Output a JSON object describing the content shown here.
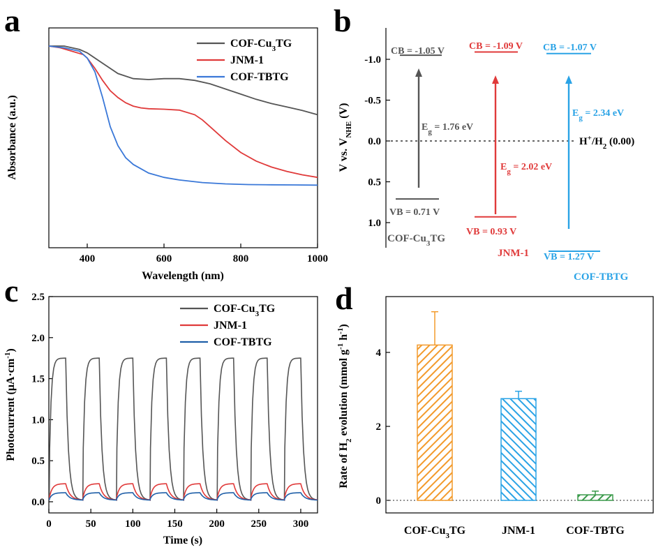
{
  "chart_data": [
    {
      "panel": "a",
      "type": "line",
      "xlabel": "Wavelength (nm)",
      "ylabel": "Absorbance (a.u.)",
      "xlim": [
        300,
        1000
      ],
      "ylim": [
        0,
        1
      ],
      "xticks": [
        400,
        600,
        800,
        1000
      ],
      "yticks": [],
      "legend": "top-right",
      "series": [
        {
          "name": "COF-Cu",
          "name_sub": "3",
          "name_end": "TG",
          "color": "#555555",
          "x": [
            300,
            340,
            380,
            400,
            440,
            480,
            520,
            560,
            600,
            640,
            680,
            720,
            760,
            800,
            840,
            880,
            920,
            960,
            1000
          ],
          "y": [
            1.0,
            1.0,
            0.98,
            0.96,
            0.9,
            0.84,
            0.81,
            0.805,
            0.81,
            0.81,
            0.8,
            0.78,
            0.75,
            0.72,
            0.69,
            0.665,
            0.645,
            0.625,
            0.6
          ]
        },
        {
          "name": "JNM-1",
          "color": "#e03a3a",
          "x": [
            300,
            330,
            360,
            390,
            400,
            420,
            440,
            460,
            480,
            500,
            520,
            540,
            560,
            600,
            640,
            680,
            700,
            720,
            760,
            800,
            840,
            880,
            920,
            960,
            1000
          ],
          "y": [
            1.0,
            0.99,
            0.97,
            0.95,
            0.93,
            0.87,
            0.8,
            0.74,
            0.7,
            0.67,
            0.65,
            0.64,
            0.635,
            0.632,
            0.627,
            0.6,
            0.57,
            0.53,
            0.45,
            0.38,
            0.33,
            0.295,
            0.27,
            0.25,
            0.235
          ]
        },
        {
          "name": "COF-TBTG",
          "color": "#3a78d8",
          "x": [
            300,
            340,
            380,
            400,
            420,
            440,
            460,
            480,
            500,
            520,
            560,
            600,
            640,
            700,
            760,
            820,
            880,
            940,
            1000
          ],
          "y": [
            1.0,
            0.99,
            0.97,
            0.93,
            0.85,
            0.7,
            0.53,
            0.42,
            0.35,
            0.31,
            0.26,
            0.235,
            0.22,
            0.205,
            0.197,
            0.193,
            0.192,
            0.191,
            0.19
          ]
        }
      ]
    },
    {
      "panel": "b",
      "type": "band-diagram",
      "ylabel_parts": [
        "V vs. V",
        "NHE",
        " (V)"
      ],
      "ylim": [
        -1.3,
        1.4
      ],
      "yticks": [
        "-1.0",
        "-0.5",
        "0.0",
        "0.5",
        "1.0"
      ],
      "ytick_values": [
        -1.0,
        -0.5,
        0.0,
        0.5,
        1.0
      ],
      "ref_line": {
        "label_parts": [
          "H",
          "+",
          "/H",
          "2",
          " (0.00)"
        ],
        "value": 0.0
      },
      "materials": [
        {
          "name": "COF-Cu",
          "name_sub": "3",
          "name_end": "TG",
          "color": "#555555",
          "cb": -1.05,
          "vb": 0.71,
          "cb_label": "CB = -1.05 V",
          "vb_label": "VB = 0.71 V",
          "eg_prefix": "E",
          "eg_sub": "g",
          "eg_value": "= 1.76 eV"
        },
        {
          "name": "JNM-1",
          "color": "#e03a3a",
          "cb": -1.09,
          "vb": 0.93,
          "cb_label": "CB = -1.09 V",
          "vb_label": "VB = 0.93 V",
          "eg_prefix": "E",
          "eg_sub": "g",
          "eg_value": "= 2.02 eV"
        },
        {
          "name": "COF-TBTG",
          "color": "#2aa3e6",
          "cb": -1.07,
          "vb": 1.27,
          "cb_label": "CB = -1.07 V",
          "vb_label": "VB = 1.27 V",
          "eg_prefix": "E",
          "eg_sub": "g",
          "eg_value": "= 2.34 eV"
        }
      ]
    },
    {
      "panel": "c",
      "type": "line",
      "xlabel": "Time (s)",
      "ylabel_parts": [
        "Photocurrent (μA·cm",
        "-1",
        ")"
      ],
      "xlim": [
        0,
        320
      ],
      "ylim": [
        -0.05,
        2.5
      ],
      "xticks": [
        0,
        50,
        100,
        150,
        200,
        250,
        300
      ],
      "yticks": [
        "0.0",
        "0.5",
        "1.0",
        "1.5",
        "2.0",
        "2.5"
      ],
      "ytick_values": [
        0.0,
        0.5,
        1.0,
        1.5,
        2.0,
        2.5
      ],
      "legend": "top-right",
      "pulse": {
        "on_times": [
          0,
          40,
          80,
          120,
          160,
          200,
          240,
          280
        ],
        "light_on_duration": 20
      },
      "series": [
        {
          "name": "COF-Cu",
          "name_sub": "3",
          "name_end": "TG",
          "color": "#555555",
          "plateau": 1.75,
          "baseline": 0.02
        },
        {
          "name": "JNM-1",
          "color": "#e03a3a",
          "plateau": 0.22,
          "baseline": 0.02
        },
        {
          "name": "COF-TBTG",
          "color": "#1f5fa8",
          "plateau": 0.11,
          "baseline": 0.02
        }
      ]
    },
    {
      "panel": "d",
      "type": "bar",
      "ylabel_parts": [
        "Rate of H",
        "2",
        " evolution (mmol g",
        "-1",
        " h",
        "-1",
        ")"
      ],
      "ylim": [
        -0.3,
        5.5
      ],
      "yticks": [
        "0",
        "2",
        "4"
      ],
      "ytick_values": [
        0,
        2,
        4
      ],
      "categories": [
        {
          "name": "COF-Cu",
          "name_sub": "3",
          "name_end": "TG"
        },
        {
          "name": "JNM-1"
        },
        {
          "name": "COF-TBTG"
        }
      ],
      "values": [
        4.2,
        2.75,
        0.15
      ],
      "errors": [
        0.9,
        0.2,
        0.1
      ],
      "colors": [
        "#f39a2b",
        "#2aa3e6",
        "#3a9a4a"
      ]
    }
  ],
  "panel_labels": [
    "a",
    "b",
    "c",
    "d"
  ]
}
